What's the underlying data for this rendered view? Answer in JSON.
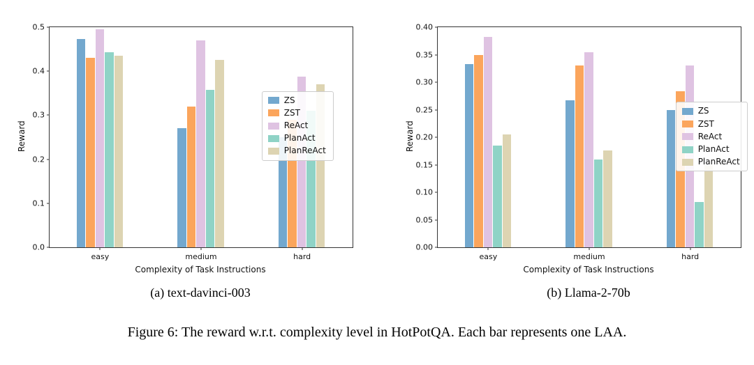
{
  "figure": {
    "caption": "Figure 6: The reward w.r.t. complexity level in HotPotQA. Each bar represents one LAA.",
    "subcaptions": [
      "(a) text-davinci-003",
      "(b) Llama-2-70b"
    ]
  },
  "chart_data": [
    {
      "type": "bar",
      "title": "(a) text-davinci-003",
      "categories": [
        "easy",
        "medium",
        "hard"
      ],
      "series": [
        {
          "name": "ZS",
          "color": "#73a8ce",
          "values": [
            0.473,
            0.27,
            0.25
          ]
        },
        {
          "name": "ZST",
          "color": "#fba55c",
          "values": [
            0.43,
            0.32,
            0.29
          ]
        },
        {
          "name": "ReAct",
          "color": "#dfc3e2",
          "values": [
            0.495,
            0.47,
            0.387
          ]
        },
        {
          "name": "PlanAct",
          "color": "#8fd3c6",
          "values": [
            0.443,
            0.358,
            0.31
          ]
        },
        {
          "name": "PlanReAct",
          "color": "#ddd4b2",
          "values": [
            0.435,
            0.425,
            0.37
          ]
        }
      ],
      "xlabel": "Complexity of Task Instructions",
      "ylabel": "Reward",
      "ylim": [
        0,
        0.5
      ],
      "yticks": [
        "0.0",
        "0.1",
        "0.2",
        "0.3",
        "0.4",
        "0.5"
      ],
      "grid": false,
      "legend_position": {
        "x": 0.7,
        "y": 0.29
      }
    },
    {
      "type": "bar",
      "title": "(b) Llama-2-70b",
      "categories": [
        "easy",
        "medium",
        "hard"
      ],
      "series": [
        {
          "name": "ZS",
          "color": "#73a8ce",
          "values": [
            0.333,
            0.267,
            0.25
          ]
        },
        {
          "name": "ZST",
          "color": "#fba55c",
          "values": [
            0.349,
            0.331,
            0.283
          ]
        },
        {
          "name": "ReAct",
          "color": "#dfc3e2",
          "values": [
            0.382,
            0.355,
            0.33
          ]
        },
        {
          "name": "PlanAct",
          "color": "#8fd3c6",
          "values": [
            0.185,
            0.16,
            0.082
          ]
        },
        {
          "name": "PlanReAct",
          "color": "#ddd4b2",
          "values": [
            0.205,
            0.176,
            0.15
          ]
        }
      ],
      "xlabel": "Complexity of Task Instructions",
      "ylabel": "Reward",
      "ylim": [
        0,
        0.4
      ],
      "yticks": [
        "0.00",
        "0.05",
        "0.10",
        "0.15",
        "0.20",
        "0.25",
        "0.30",
        "0.35",
        "0.40"
      ],
      "grid": false,
      "legend_position": {
        "x": 0.785,
        "y": 0.34
      }
    }
  ]
}
